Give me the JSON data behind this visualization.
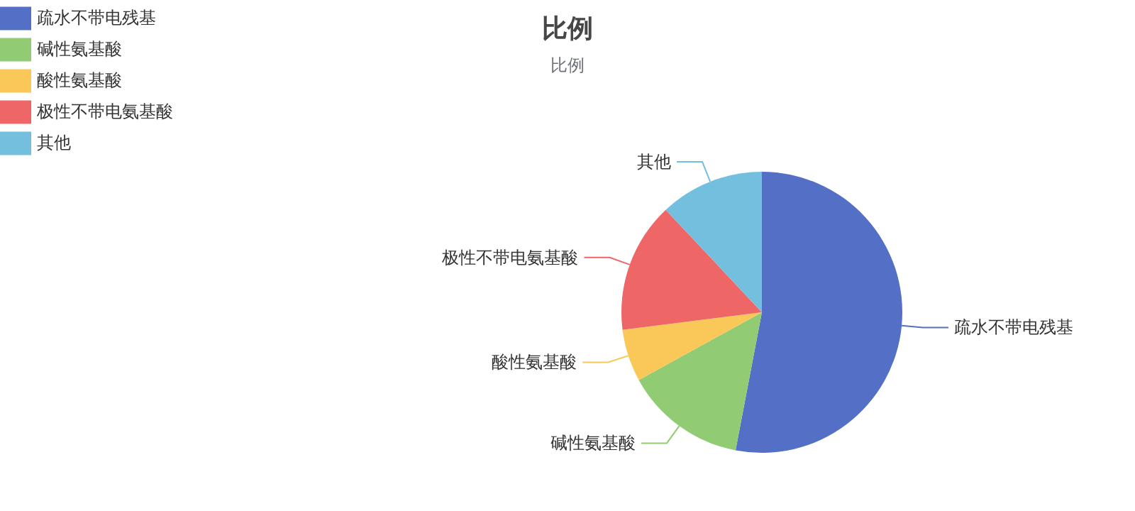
{
  "chart_data": {
    "type": "pie",
    "title": "比例",
    "subtitle": "比例",
    "categories": [
      "疏水不带电残基",
      "碱性氨基酸",
      "酸性氨基酸",
      "极性不带电氨基酸",
      "其他"
    ],
    "values": [
      53,
      14,
      6,
      15,
      12
    ],
    "colors": [
      "#5470c6",
      "#91cc75",
      "#fac858",
      "#ee6666",
      "#73c0de"
    ],
    "legend": "top left"
  }
}
